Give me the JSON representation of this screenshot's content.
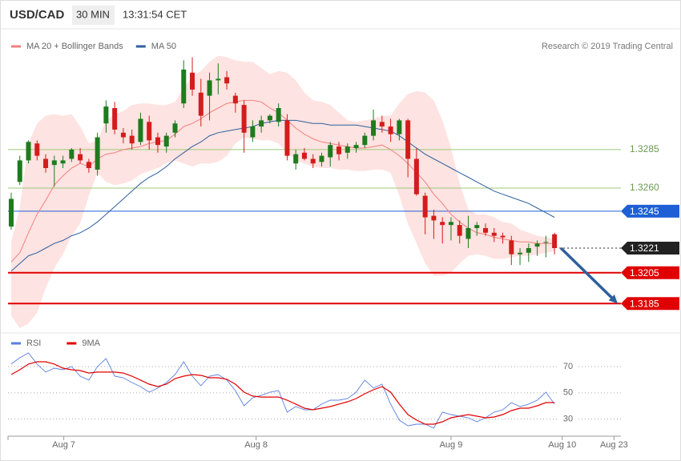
{
  "header": {
    "symbol": "USD/CAD",
    "interval": "30 MIN",
    "time": "13:31:54 CET"
  },
  "chart_data": [
    {
      "type": "candlestick",
      "source": "Research © 2019 Trading Central",
      "up_color": "#1e7b1e",
      "down_color": "#d41c1c",
      "xlim": [
        -0.37,
        70.7
      ],
      "ylim": [
        1.3169,
        1.3351
      ],
      "open": [
        1.3235,
        1.3264,
        1.3278,
        1.3289,
        1.3279,
        1.3275,
        1.3276,
        1.3279,
        1.3282,
        1.3277,
        1.3272,
        1.3302,
        1.3312,
        1.3296,
        1.3294,
        1.329,
        1.3303,
        1.3293,
        1.3287,
        1.3296,
        1.3315,
        1.3335,
        1.3322,
        1.332,
        1.333,
        1.3332,
        1.332,
        1.3314,
        1.3293,
        1.33,
        1.3304,
        1.3303,
        1.3304,
        1.3276,
        1.3283,
        1.3279,
        1.3277,
        1.328,
        1.3287,
        1.3283,
        1.3286,
        1.3288,
        1.3294,
        1.3303,
        1.33,
        1.3295,
        1.3304,
        1.3279,
        1.3255,
        1.3242,
        1.3238,
        1.3236,
        1.3236,
        1.3227,
        1.3234,
        1.3234,
        1.3231,
        1.3229,
        1.3226,
        1.3217,
        1.3218,
        1.3222,
        1.3225,
        1.323
      ],
      "high": [
        1.3257,
        1.3281,
        1.3291,
        1.3291,
        1.3282,
        1.3281,
        1.3281,
        1.3286,
        1.3286,
        1.3279,
        1.3296,
        1.3317,
        1.3316,
        1.3299,
        1.3298,
        1.3309,
        1.3307,
        1.3296,
        1.3296,
        1.3304,
        1.3343,
        1.3345,
        1.3331,
        1.3335,
        1.3341,
        1.3336,
        1.3322,
        1.3317,
        1.3304,
        1.3307,
        1.3308,
        1.3315,
        1.3308,
        1.3285,
        1.3286,
        1.3282,
        1.3283,
        1.329,
        1.329,
        1.3289,
        1.329,
        1.3296,
        1.3311,
        1.3307,
        1.3305,
        1.3305,
        1.3305,
        1.3286,
        1.3257,
        1.3246,
        1.3241,
        1.3241,
        1.3239,
        1.3242,
        1.3238,
        1.3237,
        1.3234,
        1.3231,
        1.3229,
        1.3221,
        1.3224,
        1.3226,
        1.3229,
        1.3231
      ],
      "low": [
        1.3233,
        1.3262,
        1.3276,
        1.3278,
        1.327,
        1.3261,
        1.3273,
        1.3277,
        1.3276,
        1.327,
        1.3268,
        1.3296,
        1.3295,
        1.3289,
        1.3285,
        1.3288,
        1.3285,
        1.3283,
        1.3283,
        1.3293,
        1.3312,
        1.332,
        1.33,
        1.3304,
        1.3321,
        1.3324,
        1.3309,
        1.3283,
        1.329,
        1.3296,
        1.3302,
        1.33,
        1.3278,
        1.3272,
        1.3278,
        1.3273,
        1.3274,
        1.3274,
        1.3278,
        1.3279,
        1.3283,
        1.3286,
        1.3291,
        1.3296,
        1.329,
        1.3291,
        1.3267,
        1.3255,
        1.323,
        1.3227,
        1.3224,
        1.3226,
        1.3224,
        1.3221,
        1.3229,
        1.3229,
        1.3225,
        1.3224,
        1.321,
        1.321,
        1.3212,
        1.3216,
        1.3215,
        1.3217
      ],
      "close": [
        1.3253,
        1.3278,
        1.329,
        1.3281,
        1.3273,
        1.3278,
        1.3278,
        1.3285,
        1.3278,
        1.3273,
        1.3293,
        1.3313,
        1.3298,
        1.3293,
        1.3289,
        1.3305,
        1.3291,
        1.3288,
        1.3294,
        1.3302,
        1.3337,
        1.3324,
        1.3307,
        1.333,
        1.3331,
        1.3328,
        1.3315,
        1.3296,
        1.33,
        1.3304,
        1.3307,
        1.3312,
        1.3281,
        1.3282,
        1.3279,
        1.3276,
        1.3281,
        1.3288,
        1.3282,
        1.3287,
        1.3288,
        1.3294,
        1.3304,
        1.33,
        1.3295,
        1.3304,
        1.3279,
        1.3256,
        1.3241,
        1.3239,
        1.3236,
        1.3238,
        1.3229,
        1.3234,
        1.3236,
        1.3231,
        1.3229,
        1.3228,
        1.3217,
        1.3218,
        1.3221,
        1.3224,
        1.3225,
        1.3221
      ],
      "series": [
        {
          "name": "MA 20 + Bollinger Bands",
          "color": "#f08080",
          "band_color": "#fde3e1",
          "values": [
            1.3212,
            1.3218,
            1.3231,
            1.3243,
            1.3252,
            1.3262,
            1.3268,
            1.3273,
            1.3276,
            1.3274,
            1.3279,
            1.3282,
            1.3283,
            1.3285,
            1.3286,
            1.3287,
            1.3289,
            1.329,
            1.3291,
            1.3295,
            1.33,
            1.3302,
            1.3305,
            1.3309,
            1.3312,
            1.3315,
            1.3316,
            1.3317,
            1.3317,
            1.3316,
            1.3312,
            1.3309,
            1.3304,
            1.3299,
            1.3295,
            1.3292,
            1.329,
            1.3289,
            1.3288,
            1.3287,
            1.3286,
            1.3286,
            1.3287,
            1.3288,
            1.3285,
            1.3281,
            1.3276,
            1.327,
            1.3264,
            1.3256,
            1.325,
            1.3243,
            1.3238,
            1.3234,
            1.3231,
            1.323,
            1.3228,
            1.3227,
            1.3226,
            1.3225,
            1.3225,
            1.3224,
            1.3224,
            1.3224
          ],
          "upper": [
            1.3225,
            1.3247,
            1.3289,
            1.3302,
            1.3307,
            1.3308,
            1.3307,
            1.3308,
            1.33,
            1.3289,
            1.3291,
            1.3304,
            1.3308,
            1.331,
            1.3314,
            1.3315,
            1.3315,
            1.3314,
            1.3314,
            1.3316,
            1.3325,
            1.3333,
            1.3336,
            1.3342,
            1.3346,
            1.3345,
            1.3343,
            1.3342,
            1.3342,
            1.3338,
            1.3334,
            1.3336,
            1.3335,
            1.333,
            1.3322,
            1.3317,
            1.3316,
            1.3314,
            1.3309,
            1.3304,
            1.3303,
            1.3304,
            1.3305,
            1.3307,
            1.3307,
            1.3315,
            1.3321,
            1.3323,
            1.3322,
            1.3317,
            1.3304,
            1.3286,
            1.3263,
            1.3246,
            1.3243,
            1.3243,
            1.3241,
            1.3238,
            1.3237,
            1.3233,
            1.3231,
            1.3229,
            1.3228,
            1.3227
          ],
          "lower": [
            1.3177,
            1.3169,
            1.3172,
            1.3179,
            1.3195,
            1.3208,
            1.3217,
            1.3229,
            1.3237,
            1.3255,
            1.327,
            1.3264,
            1.3262,
            1.3263,
            1.3265,
            1.3269,
            1.3271,
            1.3273,
            1.3276,
            1.3278,
            1.3276,
            1.3274,
            1.3276,
            1.3276,
            1.3277,
            1.3281,
            1.3289,
            1.3293,
            1.3292,
            1.3291,
            1.3291,
            1.3289,
            1.3283,
            1.3278,
            1.3276,
            1.3274,
            1.3273,
            1.3273,
            1.3272,
            1.3272,
            1.3271,
            1.3271,
            1.3272,
            1.3272,
            1.327,
            1.3255,
            1.3237,
            1.3224,
            1.3211,
            1.3203,
            1.3203,
            1.3205,
            1.3211,
            1.3216,
            1.3217,
            1.3216,
            1.3214,
            1.3214,
            1.3215,
            1.3216,
            1.3216,
            1.3217,
            1.3218,
            1.3219
          ]
        },
        {
          "name": "MA 50",
          "color": "#2f5f9e",
          "values": [
            1.3206,
            1.3211,
            1.3216,
            1.3218,
            1.3221,
            1.3224,
            1.3226,
            1.3229,
            1.3231,
            1.3234,
            1.3238,
            1.3243,
            1.3248,
            1.3253,
            1.3258,
            1.3263,
            1.3267,
            1.327,
            1.3274,
            1.3279,
            1.3283,
            1.3287,
            1.329,
            1.3294,
            1.3296,
            1.3297,
            1.3298,
            1.3299,
            1.33,
            1.3302,
            1.3303,
            1.3304,
            1.3304,
            1.3304,
            1.3303,
            1.3302,
            1.3302,
            1.3301,
            1.3301,
            1.3301,
            1.3301,
            1.33,
            1.3299,
            1.3298,
            1.3297,
            1.3294,
            1.329,
            1.3286,
            1.3282,
            1.3279,
            1.3276,
            1.3273,
            1.327,
            1.3267,
            1.3264,
            1.3261,
            1.3258,
            1.3256,
            1.3254,
            1.3252,
            1.325,
            1.3247,
            1.3244,
            1.3241
          ]
        }
      ],
      "levels": [
        {
          "value": 1.3285,
          "label": "1.3285",
          "color": "#9cc97a",
          "line": "solid",
          "badge": false
        },
        {
          "value": 1.326,
          "label": "1.3260",
          "color": "#9cc97a",
          "line": "solid",
          "badge": false
        },
        {
          "value": 1.3245,
          "label": "1.3245",
          "color": "#1e5fd6",
          "line": "solid",
          "badge": true
        },
        {
          "value": 1.3221,
          "label": "1.3221",
          "color": "#222222",
          "line": "dotted",
          "badge": true
        },
        {
          "value": 1.3205,
          "label": "1.3205",
          "color": "#e00000",
          "line": "thick",
          "badge": true
        },
        {
          "value": 1.3185,
          "label": "1.3185",
          "color": "#e00000",
          "line": "thick",
          "badge": true
        }
      ]
    },
    {
      "type": "line",
      "xlim": [
        -0.37,
        70.7
      ],
      "ylim": [
        20,
        81
      ],
      "yticks": [
        30,
        50,
        70
      ],
      "grid": true,
      "xticks": [
        {
          "value": 6.1,
          "label": "Aug 7"
        },
        {
          "value": 28.4,
          "label": "Aug 8"
        },
        {
          "value": 51.0,
          "label": "Aug 9"
        },
        {
          "value": 63.9,
          "label": "Aug 10"
        },
        {
          "value": 69.9,
          "label": "Aug 23"
        }
      ],
      "series": [
        {
          "name": "RSI",
          "color": "#5b7fe0",
          "values": [
            71.9,
            76.7,
            80.4,
            71.9,
            65.8,
            68.8,
            67.6,
            70.0,
            62.7,
            59.7,
            70.0,
            76.1,
            62.7,
            61.5,
            57.8,
            54.8,
            50.5,
            53.6,
            57.8,
            63.9,
            73.7,
            62.7,
            55.4,
            62.7,
            63.9,
            59.7,
            51.7,
            40.1,
            46.2,
            48.1,
            50.5,
            51.7,
            35.3,
            39.5,
            37.1,
            37.1,
            41.4,
            44.4,
            44.4,
            45.6,
            50.5,
            59.7,
            53.6,
            56.6,
            41.4,
            29.2,
            24.9,
            26.1,
            26.1,
            23.1,
            35.3,
            33.4,
            32.2,
            31.0,
            27.9,
            31.0,
            35.3,
            37.1,
            42.6,
            39.5,
            41.4,
            44.4,
            50.5,
            41.4
          ]
        },
        {
          "name": "9MA",
          "color": "#e00000",
          "values": [
            63.9,
            67.6,
            71.9,
            73.7,
            73.7,
            71.9,
            68.8,
            67.6,
            67.0,
            65.1,
            65.8,
            65.8,
            65.8,
            65.1,
            62.7,
            59.7,
            56.6,
            54.8,
            56.6,
            60.9,
            62.7,
            63.9,
            63.3,
            61.5,
            61.5,
            60.3,
            56.6,
            50.5,
            47.5,
            46.8,
            46.8,
            46.8,
            44.4,
            41.4,
            38.3,
            37.1,
            38.3,
            39.5,
            41.4,
            43.2,
            45.6,
            49.3,
            52.3,
            54.8,
            50.5,
            41.4,
            33.4,
            29.2,
            26.1,
            26.1,
            27.9,
            31.0,
            32.2,
            33.4,
            32.2,
            31.0,
            31.6,
            33.4,
            36.5,
            38.3,
            38.3,
            40.1,
            42.6,
            42.6
          ]
        }
      ]
    }
  ]
}
